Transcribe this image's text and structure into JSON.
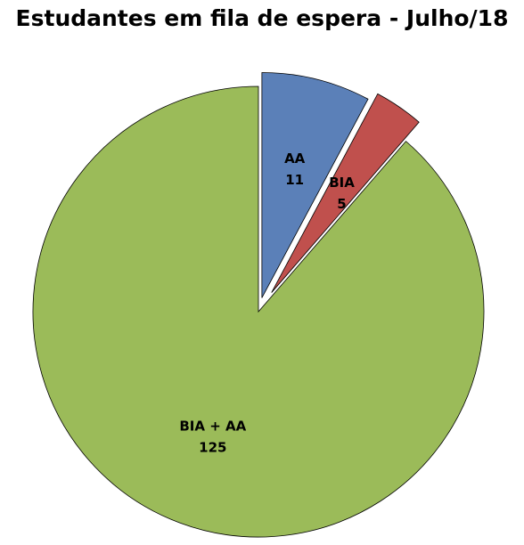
{
  "chart_data": {
    "type": "pie",
    "title": "Estudantes em fila de espera - Julho/18",
    "categories": [
      "AA",
      "BIA",
      "BIA + AA"
    ],
    "values": [
      11,
      5,
      125
    ],
    "colors": [
      "#5B80B8",
      "#C0504D",
      "#9BBB59"
    ],
    "exploded": [
      true,
      true,
      false
    ],
    "data_labels": true,
    "legend": "none"
  }
}
